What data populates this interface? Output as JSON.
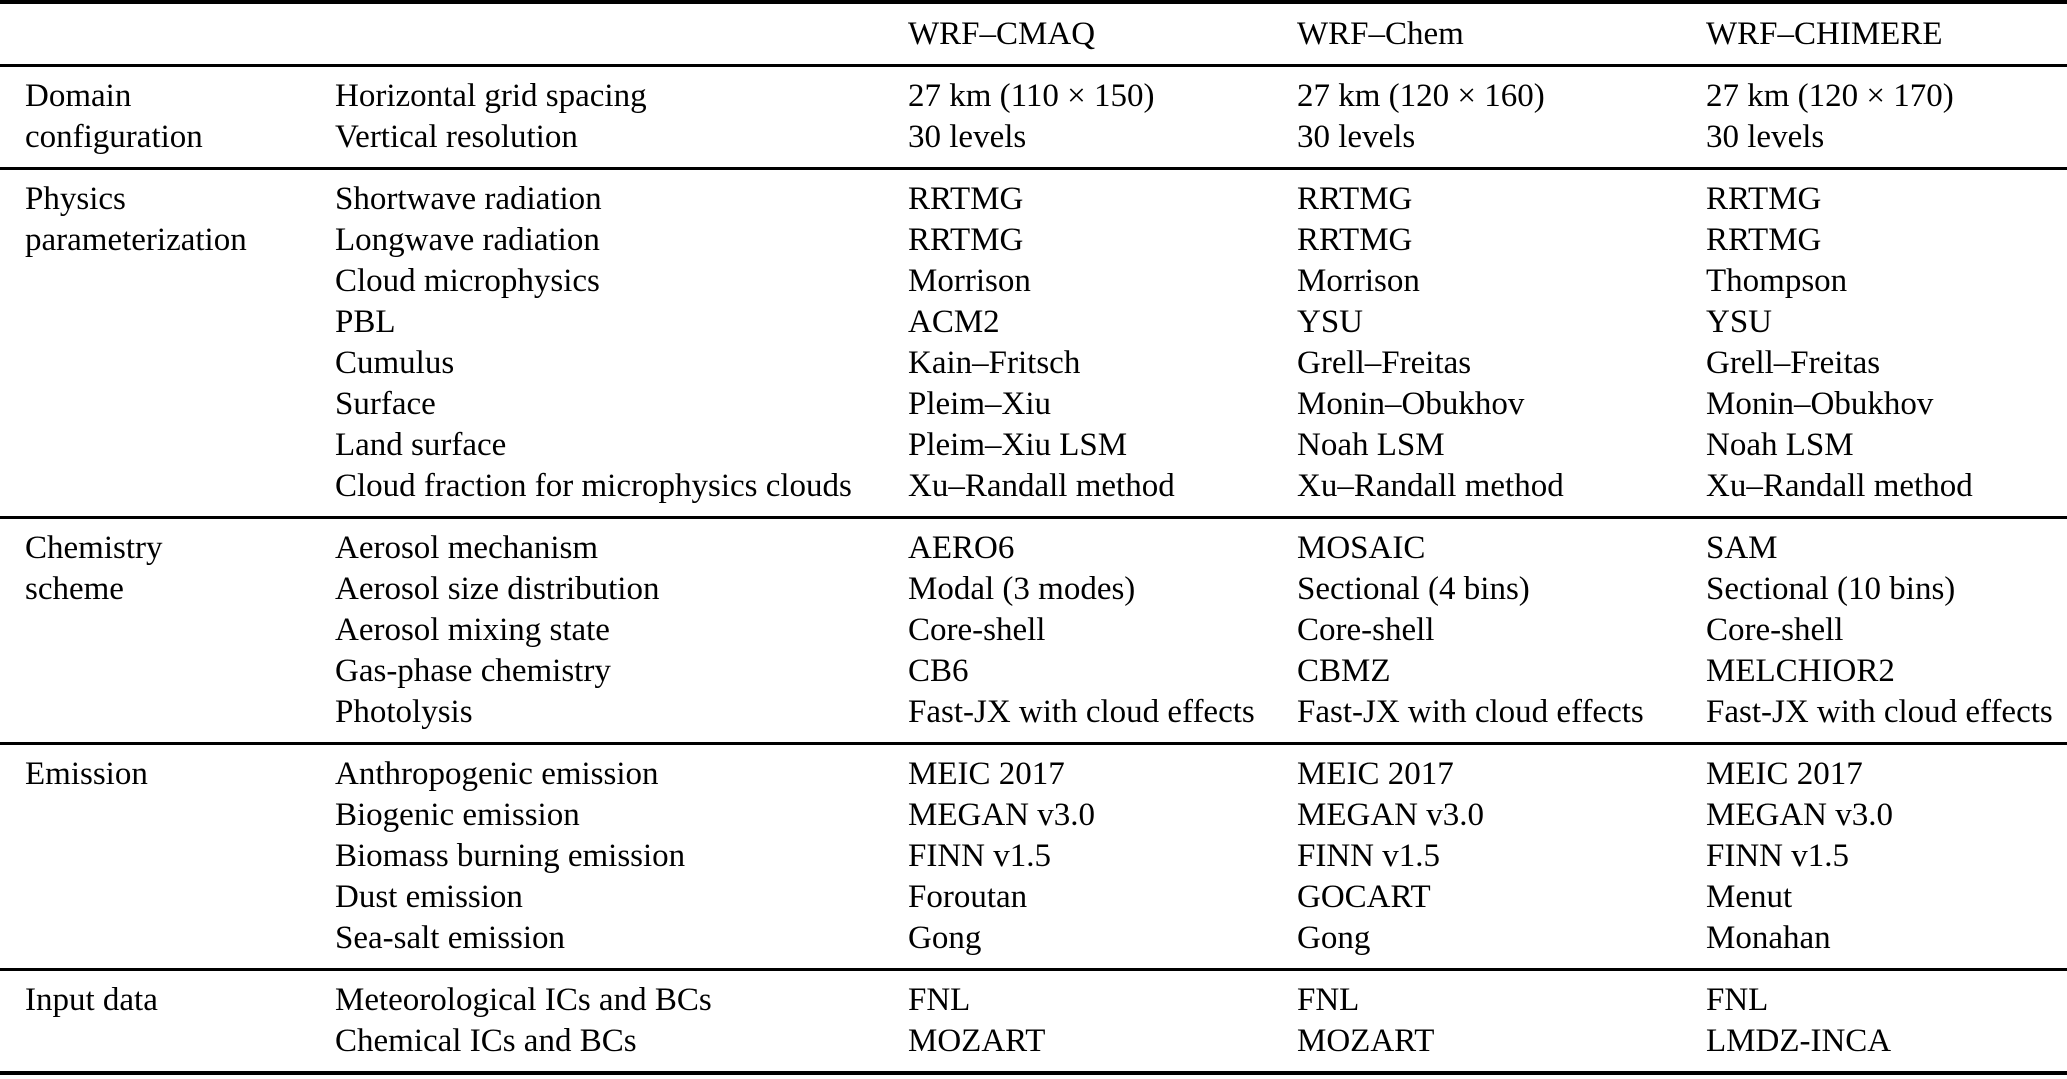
{
  "page": {
    "background_color": "#ffffff",
    "text_color": "#000000",
    "rule_color": "#000000"
  },
  "table": {
    "column_headers": [
      "WRF–CMAQ",
      "WRF–Chem",
      "WRF–CHIMERE"
    ],
    "sections": [
      {
        "group": "Domain configuration",
        "group_lines": [
          "Domain",
          "configuration"
        ],
        "rows": [
          {
            "parameter": "Horizontal grid spacing",
            "values": [
              "27 km (110 × 150)",
              "27 km (120 × 160)",
              "27 km (120 × 170)"
            ]
          },
          {
            "parameter": "Vertical resolution",
            "values": [
              "30 levels",
              "30 levels",
              "30 levels"
            ]
          }
        ]
      },
      {
        "group": "Physics parameterization",
        "group_lines": [
          "Physics",
          "parameterization"
        ],
        "rows": [
          {
            "parameter": "Shortwave radiation",
            "values": [
              "RRTMG",
              "RRTMG",
              "RRTMG"
            ]
          },
          {
            "parameter": "Longwave radiation",
            "values": [
              "RRTMG",
              "RRTMG",
              "RRTMG"
            ]
          },
          {
            "parameter": "Cloud microphysics",
            "values": [
              "Morrison",
              "Morrison",
              "Thompson"
            ]
          },
          {
            "parameter": "PBL",
            "values": [
              "ACM2",
              "YSU",
              "YSU"
            ]
          },
          {
            "parameter": "Cumulus",
            "values": [
              "Kain–Fritsch",
              "Grell–Freitas",
              "Grell–Freitas"
            ]
          },
          {
            "parameter": "Surface",
            "values": [
              "Pleim–Xiu",
              "Monin–Obukhov",
              "Monin–Obukhov"
            ]
          },
          {
            "parameter": "Land surface",
            "values": [
              "Pleim–Xiu LSM",
              "Noah LSM",
              "Noah LSM"
            ]
          },
          {
            "parameter": "Cloud fraction for microphysics clouds",
            "values": [
              "Xu–Randall method",
              "Xu–Randall method",
              "Xu–Randall method"
            ]
          }
        ]
      },
      {
        "group": "Chemistry scheme",
        "group_lines": [
          "Chemistry",
          "scheme"
        ],
        "rows": [
          {
            "parameter": "Aerosol mechanism",
            "values": [
              "AERO6",
              "MOSAIC",
              "SAM"
            ]
          },
          {
            "parameter": "Aerosol size distribution",
            "values": [
              "Modal (3 modes)",
              "Sectional (4 bins)",
              "Sectional (10 bins)"
            ]
          },
          {
            "parameter": "Aerosol mixing state",
            "values": [
              "Core-shell",
              "Core-shell",
              "Core-shell"
            ]
          },
          {
            "parameter": "Gas-phase chemistry",
            "values": [
              "CB6",
              "CBMZ",
              "MELCHIOR2"
            ]
          },
          {
            "parameter": "Photolysis",
            "values": [
              "Fast-JX with cloud effects",
              "Fast-JX with cloud effects",
              "Fast-JX with cloud effects"
            ]
          }
        ]
      },
      {
        "group": "Emission",
        "group_lines": [
          "Emission"
        ],
        "rows": [
          {
            "parameter": "Anthropogenic emission",
            "values": [
              "MEIC 2017",
              "MEIC 2017",
              "MEIC 2017"
            ]
          },
          {
            "parameter": "Biogenic emission",
            "values": [
              "MEGAN v3.0",
              "MEGAN v3.0",
              "MEGAN v3.0"
            ]
          },
          {
            "parameter": "Biomass burning emission",
            "values": [
              "FINN v1.5",
              "FINN v1.5",
              "FINN v1.5"
            ]
          },
          {
            "parameter": "Dust emission",
            "values": [
              "Foroutan",
              "GOCART",
              "Menut"
            ]
          },
          {
            "parameter": "Sea-salt emission",
            "values": [
              "Gong",
              "Gong",
              "Monahan"
            ]
          }
        ]
      },
      {
        "group": "Input data",
        "group_lines": [
          "Input data"
        ],
        "rows": [
          {
            "parameter": "Meteorological ICs and BCs",
            "values": [
              "FNL",
              "FNL",
              "FNL"
            ]
          },
          {
            "parameter": "Chemical ICs and BCs",
            "values": [
              "MOZART",
              "MOZART",
              "LMDZ-INCA"
            ]
          }
        ]
      }
    ]
  }
}
